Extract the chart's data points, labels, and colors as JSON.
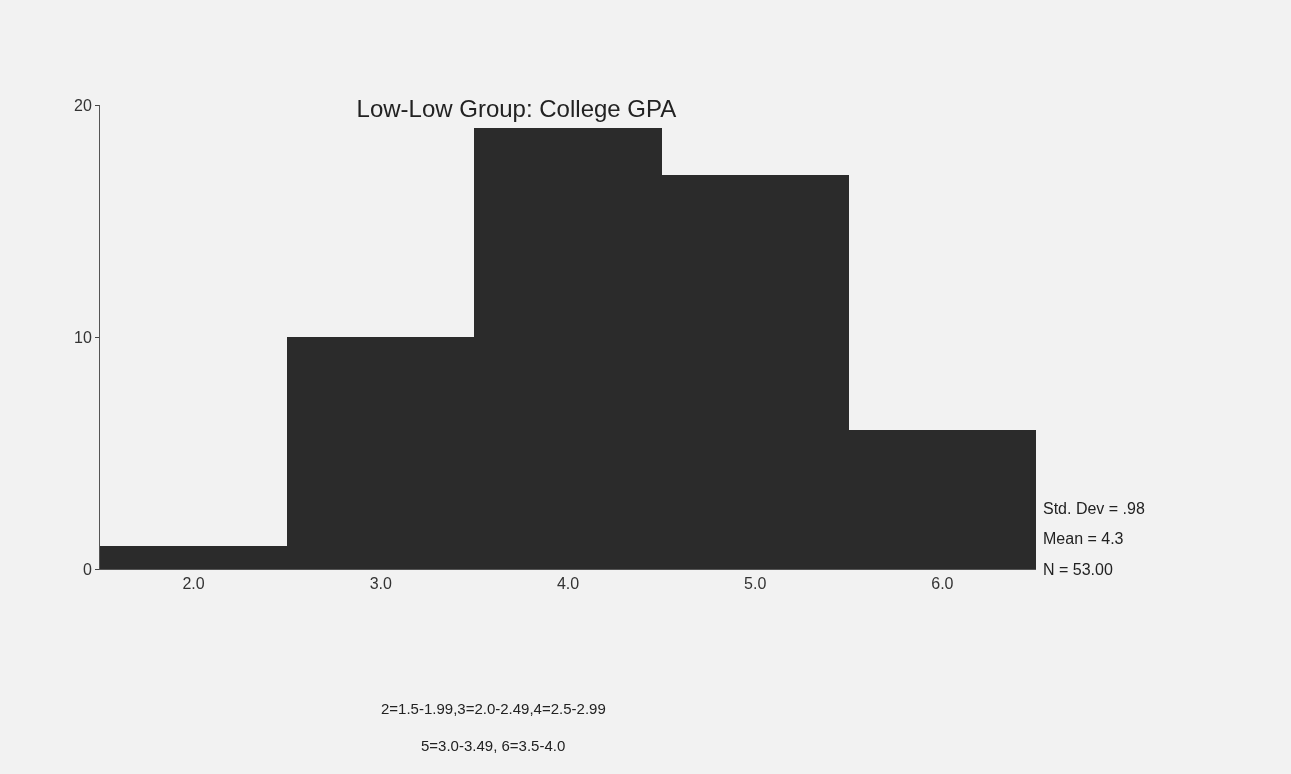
{
  "chart_data": {
    "type": "histogram",
    "title": "Low-Low Group: College GPA",
    "bins": [
      1.5,
      2.5,
      3.5,
      4.5,
      5.5,
      6.5
    ],
    "values": [
      1,
      10,
      19,
      17,
      6
    ],
    "color": "#2b2b2b",
    "xlim": [
      1.5,
      6.5
    ],
    "xticks": [
      {
        "value": 2,
        "label": "2.0"
      },
      {
        "value": 3,
        "label": "3.0"
      },
      {
        "value": 4,
        "label": "4.0"
      },
      {
        "value": 5,
        "label": "5.0"
      },
      {
        "value": 6,
        "label": "6.0"
      }
    ],
    "ylim": [
      0,
      20
    ],
    "yticks": [
      0,
      10,
      20
    ],
    "grid": false,
    "annotations": [
      "Std. Dev = .98",
      "Mean = 4.3",
      "N = 53.00",
      "2=1.5-1.99,3=2.0-2.49,4=2.5-2.99",
      "5=3.0-3.49, 6=3.5-4.0"
    ]
  }
}
